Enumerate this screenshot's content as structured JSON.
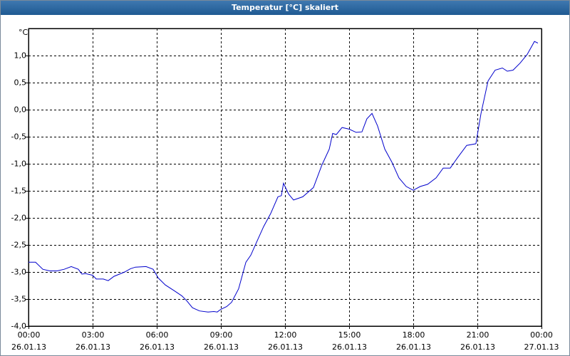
{
  "chart_data": {
    "type": "line",
    "title": "Temperatur [°C] skaliert",
    "y_label": "°C",
    "xlim": [
      0,
      24
    ],
    "ylim": [
      -4,
      1.5
    ],
    "grid": true,
    "xticks": [
      {
        "value": 0,
        "label": "00:00\n26.01.13"
      },
      {
        "value": 3,
        "label": "03:00\n26.01.13"
      },
      {
        "value": 6,
        "label": "06:00\n26.01.13"
      },
      {
        "value": 9,
        "label": "09:00\n26.01.13"
      },
      {
        "value": 12,
        "label": "12:00\n26.01.13"
      },
      {
        "value": 15,
        "label": "15:00\n26.01.13"
      },
      {
        "value": 18,
        "label": "18:00\n26.01.13"
      },
      {
        "value": 21,
        "label": "21:00\n26.01.13"
      },
      {
        "value": 24,
        "label": "00:00\n27.01.13"
      }
    ],
    "yticks": [
      {
        "value": 1,
        "label": "1,0"
      },
      {
        "value": 0.5,
        "label": "0,5"
      },
      {
        "value": 0,
        "label": "0,0"
      },
      {
        "value": -0.5,
        "label": "-0,5"
      },
      {
        "value": -1,
        "label": "-1,0"
      },
      {
        "value": -1.5,
        "label": "-1,5"
      },
      {
        "value": -2,
        "label": "-2,0"
      },
      {
        "value": -2.5,
        "label": "-2,5"
      },
      {
        "value": -3,
        "label": "-3,0"
      },
      {
        "value": -3.5,
        "label": "-3,5"
      },
      {
        "value": -4,
        "label": "-4,0"
      }
    ],
    "series": [
      {
        "color": "#0000cc",
        "x": [
          0,
          0.33,
          0.67,
          1,
          1.33,
          1.67,
          2,
          2.33,
          2.5,
          2.67,
          3,
          3.17,
          3.5,
          3.73,
          4,
          4.5,
          4.77,
          5,
          5.5,
          5.83,
          6.07,
          6.4,
          6.83,
          7.17,
          7.4,
          7.67,
          8,
          8.4,
          8.67,
          8.83,
          9,
          9.27,
          9.5,
          9.83,
          10.17,
          10.4,
          10.67,
          11,
          11.33,
          11.67,
          11.83,
          11.93,
          12.17,
          12.4,
          12.83,
          13.33,
          13.73,
          14.07,
          14.23,
          14.4,
          14.67,
          15,
          15.33,
          15.6,
          15.83,
          16.07,
          16.33,
          16.67,
          17,
          17.33,
          17.67,
          18,
          18.33,
          18.67,
          19.07,
          19.4,
          19.73,
          20.07,
          20.5,
          20.93,
          21.17,
          21.5,
          21.83,
          22.17,
          22.4,
          22.67,
          23,
          23.33,
          23.67,
          23.83
        ],
        "values": [
          -2.82,
          -2.82,
          -2.95,
          -2.98,
          -2.98,
          -2.95,
          -2.9,
          -2.95,
          -3.04,
          -3.03,
          -3.06,
          -3.13,
          -3.13,
          -3.16,
          -3.08,
          -3.0,
          -2.94,
          -2.91,
          -2.9,
          -2.95,
          -3.11,
          -3.24,
          -3.35,
          -3.44,
          -3.53,
          -3.66,
          -3.72,
          -3.74,
          -3.73,
          -3.74,
          -3.69,
          -3.64,
          -3.56,
          -3.31,
          -2.82,
          -2.69,
          -2.45,
          -2.16,
          -1.92,
          -1.61,
          -1.59,
          -1.36,
          -1.56,
          -1.67,
          -1.61,
          -1.44,
          -1.02,
          -0.73,
          -0.44,
          -0.46,
          -0.33,
          -0.36,
          -0.42,
          -0.41,
          -0.17,
          -0.07,
          -0.3,
          -0.73,
          -0.97,
          -1.26,
          -1.42,
          -1.49,
          -1.42,
          -1.38,
          -1.26,
          -1.08,
          -1.08,
          -0.89,
          -0.66,
          -0.63,
          -0.07,
          0.53,
          0.73,
          0.77,
          0.71,
          0.73,
          0.86,
          1.02,
          1.26,
          1.23
        ]
      }
    ]
  }
}
